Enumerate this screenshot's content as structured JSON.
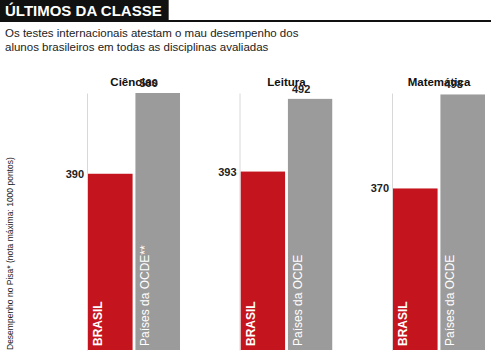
{
  "title": "ÚLTIMOS DA CLASSE",
  "subtitle": "Os testes internacionais atestam o mau desempenho dos alunos brasileiros em todas as disciplinas avaliadas",
  "y_label": "Desempenho no Pisa* (nota máxima: 1000 pontos)",
  "chart_data": [
    {
      "type": "bar",
      "title": "Ciências",
      "categories": [
        "BRASIL",
        "Países da OCDE**"
      ],
      "values": [
        390,
        500
      ],
      "colors": [
        "#c4141d",
        "#9b9b9b"
      ],
      "ylim": [
        150,
        500
      ],
      "tick_labels": false,
      "data_labels": true
    },
    {
      "type": "bar",
      "title": "Leitura",
      "categories": [
        "BRASIL",
        "Países da OCDE"
      ],
      "values": [
        393,
        492
      ],
      "colors": [
        "#c4141d",
        "#9b9b9b"
      ],
      "ylim": [
        150,
        500
      ],
      "tick_labels": false,
      "data_labels": true
    },
    {
      "type": "bar",
      "title": "Matemática",
      "categories": [
        "BRASIL",
        "Países da OCDE"
      ],
      "values": [
        370,
        498
      ],
      "colors": [
        "#c4141d",
        "#9b9b9b"
      ],
      "ylim": [
        150,
        500
      ],
      "tick_labels": false,
      "data_labels": true
    }
  ]
}
